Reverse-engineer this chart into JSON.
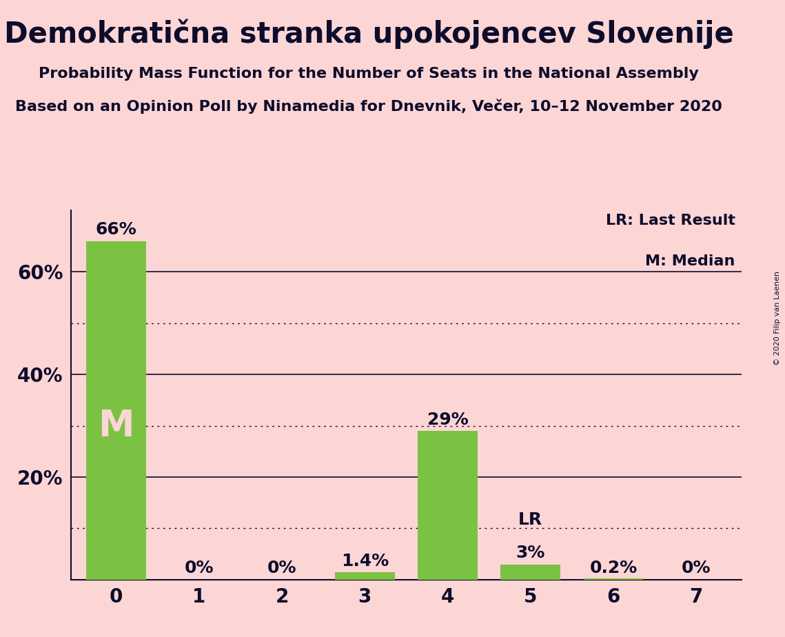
{
  "title": "Demokratična stranka upokojencev Slovenije",
  "subtitle1": "Probability Mass Function for the Number of Seats in the National Assembly",
  "subtitle2": "Based on an Opinion Poll by Ninamedia for Dnevnik, Večer, 10–12 November 2020",
  "copyright": "© 2020 Filip van Laenen",
  "categories": [
    0,
    1,
    2,
    3,
    4,
    5,
    6,
    7
  ],
  "values": [
    0.66,
    0.0,
    0.0,
    0.014,
    0.29,
    0.03,
    0.002,
    0.0
  ],
  "bar_labels": [
    "66%",
    "0%",
    "0%",
    "1.4%",
    "29%",
    "3%",
    "0.2%",
    "0%"
  ],
  "bar_color": "#7bc242",
  "background_color": "#fcd5d5",
  "text_color": "#0d0d2b",
  "median_bar": 0,
  "median_label": "M",
  "lr_bar": 5,
  "lr_label": "LR",
  "legend_lr": "LR: Last Result",
  "legend_m": "M: Median",
  "ylim": [
    0,
    0.72
  ],
  "solid_yticks": [
    0.2,
    0.4,
    0.6
  ],
  "dotted_yticks": [
    0.1,
    0.3,
    0.5
  ],
  "ylabel_ticks": [
    0.2,
    0.4,
    0.6
  ],
  "ylabel_labels": [
    "20%",
    "40%",
    "60%"
  ],
  "title_fontsize": 30,
  "subtitle_fontsize": 16,
  "bar_label_fontsize": 18,
  "axis_label_fontsize": 20,
  "legend_fontsize": 16,
  "median_fontsize": 38
}
